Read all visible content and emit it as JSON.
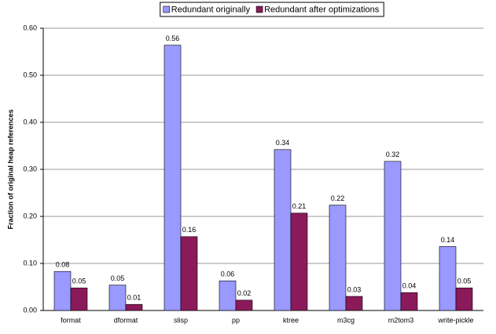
{
  "chart_data": {
    "type": "bar",
    "y_label": "Fraction of original heap references",
    "categories": [
      "format",
      "dformat",
      "slisp",
      "pp",
      "ktree",
      "m3cg",
      "m2tom3",
      "write-pickle"
    ],
    "series": [
      {
        "name": "Redundant originally",
        "color": "#9999ff",
        "values": [
          0.083,
          0.054,
          0.564,
          0.063,
          0.342,
          0.224,
          0.317,
          0.136
        ],
        "value_labels": [
          "0.08",
          "0.05",
          "0.56",
          "0.06",
          "0.34",
          "0.22",
          "0.32",
          "0.14"
        ]
      },
      {
        "name": "Redundant after optimizations",
        "color": "#8b1a5a",
        "values": [
          0.048,
          0.013,
          0.157,
          0.022,
          0.207,
          0.03,
          0.038,
          0.048
        ],
        "value_labels": [
          "0.05",
          "0.01",
          "0.16",
          "0.02",
          "0.21",
          "0.03",
          "0.04",
          "0.05"
        ]
      }
    ],
    "ylim": [
      0,
      0.6
    ],
    "yticks": [
      {
        "value": 0,
        "label": "0.00"
      },
      {
        "value": 0.1,
        "label": "0.10"
      },
      {
        "value": 0.2,
        "label": "0.20"
      },
      {
        "value": 0.3,
        "label": "0.30"
      },
      {
        "value": 0.4,
        "label": "0.40"
      },
      {
        "value": 0.5,
        "label": "0.50"
      },
      {
        "value": 0.6,
        "label": "0.60"
      }
    ],
    "grid": true,
    "legend": "top"
  }
}
